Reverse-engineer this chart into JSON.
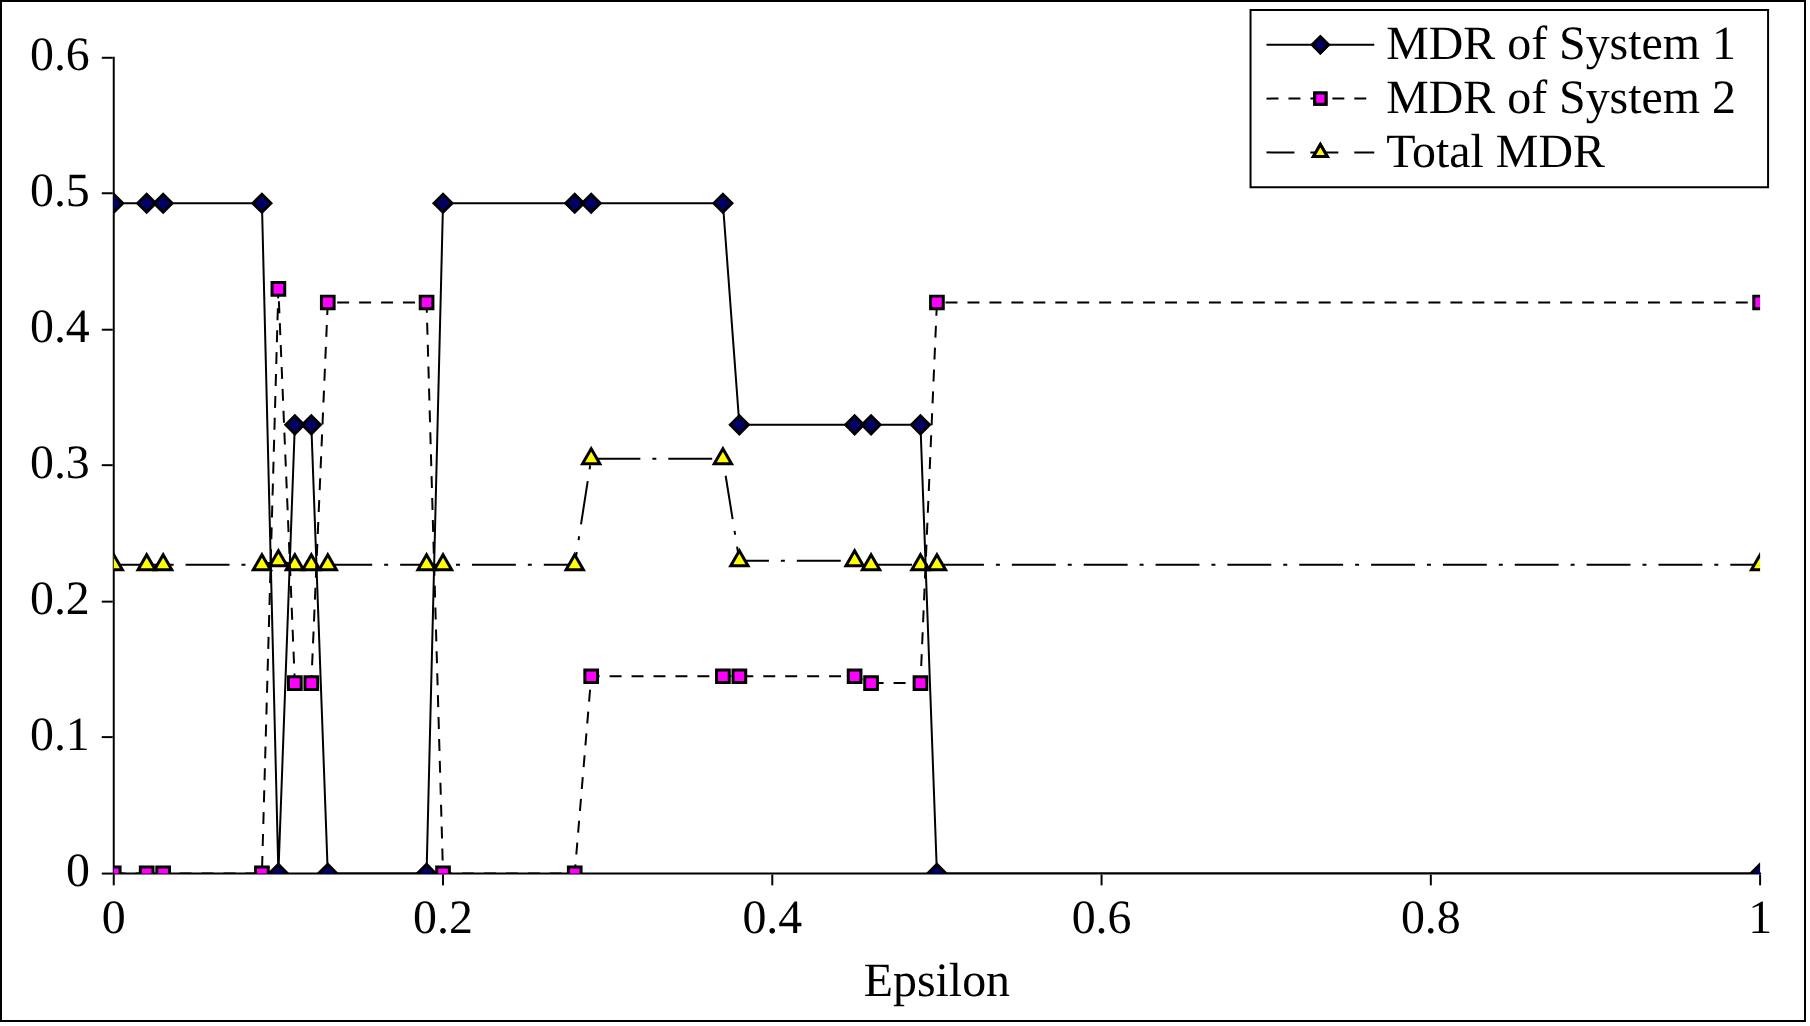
{
  "chart_data": {
    "type": "line",
    "xlabel": "Epsilon",
    "x": [
      0,
      0.02,
      0.03,
      0.09,
      0.1,
      0.11,
      0.12,
      0.13,
      0.19,
      0.2,
      0.28,
      0.29,
      0.37,
      0.38,
      0.45,
      0.46,
      0.49,
      0.5,
      1
    ],
    "series": [
      {
        "name": "MDR of System 1",
        "color": "#000066",
        "marker": "diamond",
        "line_style": "solid",
        "values": [
          0.493,
          0.493,
          0.493,
          0.493,
          0,
          0.33,
          0.33,
          0,
          0,
          0.493,
          0.493,
          0.493,
          0.493,
          0.33,
          0.33,
          0.33,
          0.33,
          0,
          0
        ]
      },
      {
        "name": "MDR of System 2",
        "color": "#ff00ff",
        "marker": "square",
        "line_style": "dashed",
        "values": [
          0,
          0,
          0,
          0,
          0.43,
          0.14,
          0.14,
          0.42,
          0.42,
          0,
          0,
          0.145,
          0.145,
          0.145,
          0.145,
          0.14,
          0.14,
          0.42,
          0.42
        ]
      },
      {
        "name": "Total MDR",
        "color": "#ffff00",
        "marker": "triangle",
        "line_style": "dashed",
        "values": [
          0.227,
          0.227,
          0.227,
          0.227,
          0.23,
          0.227,
          0.227,
          0.227,
          0.227,
          0.227,
          0.227,
          0.305,
          0.305,
          0.23,
          0.23,
          0.227,
          0.227,
          0.227,
          0.227
        ]
      }
    ],
    "xlim": [
      0,
      1
    ],
    "xticks": [
      0,
      0.2,
      0.4,
      0.6,
      0.8,
      1
    ],
    "ylim": [
      0,
      0.6
    ],
    "yticks": [
      0,
      0.1,
      0.2,
      0.3,
      0.4,
      0.5,
      0.6
    ],
    "grid": false,
    "legend": "top right"
  }
}
